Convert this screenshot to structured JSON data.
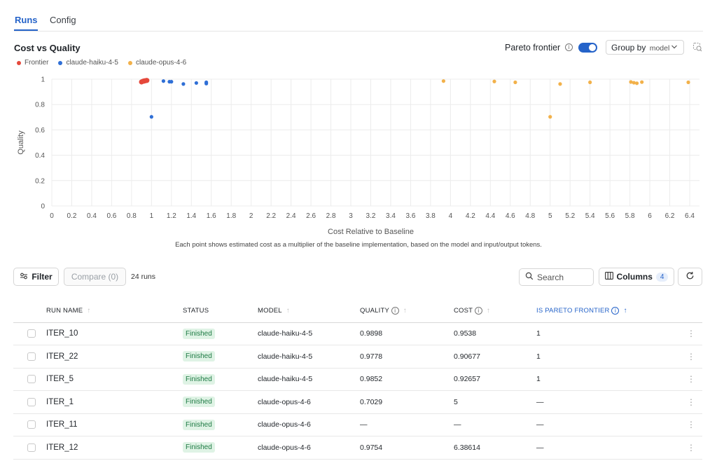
{
  "tabs": [
    {
      "label": "Runs",
      "active": true
    },
    {
      "label": "Config",
      "active": false
    }
  ],
  "chart_header": {
    "title": "Cost vs Quality",
    "pareto_label": "Pareto frontier",
    "pareto_enabled": true,
    "group_by_label": "Group by",
    "group_by_value": "model",
    "info_glyph": "i"
  },
  "chart_data": {
    "type": "scatter",
    "title": "Cost vs Quality",
    "xlabel": "Cost Relative to Baseline",
    "ylabel": "Quality",
    "xlim": [
      0,
      6.4
    ],
    "ylim": [
      0,
      1
    ],
    "x_ticks": [
      "0",
      "0.2",
      "0.4",
      "0.6",
      "0.8",
      "1",
      "1.2",
      "1.4",
      "1.6",
      "1.8",
      "2",
      "2.2",
      "2.4",
      "2.6",
      "2.8",
      "3",
      "3.2",
      "3.4",
      "3.6",
      "3.8",
      "4",
      "4.2",
      "4.4",
      "4.6",
      "4.8",
      "5",
      "5.2",
      "5.4",
      "5.6",
      "5.8",
      "6",
      "6.2",
      "6.4"
    ],
    "y_ticks": [
      "0",
      "0.2",
      "0.4",
      "0.6",
      "0.8",
      "1"
    ],
    "grid": true,
    "legend_position": "top-left",
    "series": [
      {
        "name": "Frontier",
        "color": "#e5483b",
        "points": [
          [
            0.9,
            0.978
          ],
          [
            0.91,
            0.982
          ],
          [
            0.92,
            0.985
          ],
          [
            0.927,
            0.985
          ],
          [
            0.93,
            0.987
          ],
          [
            0.94,
            0.988
          ],
          [
            0.95,
            0.99
          ],
          [
            0.954,
            0.99
          ]
        ]
      },
      {
        "name": "claude-haiku-4-5",
        "color": "#2f6fd6",
        "points": [
          [
            1.0,
            0.703
          ],
          [
            1.12,
            0.985
          ],
          [
            1.18,
            0.98
          ],
          [
            1.2,
            0.98
          ],
          [
            1.32,
            0.962
          ],
          [
            1.45,
            0.97
          ],
          [
            1.55,
            0.965
          ],
          [
            1.55,
            0.975
          ]
        ]
      },
      {
        "name": "claude-opus-4-6",
        "color": "#f2b14a",
        "points": [
          [
            3.93,
            0.985
          ],
          [
            4.44,
            0.982
          ],
          [
            4.65,
            0.975
          ],
          [
            5.0,
            0.703
          ],
          [
            5.1,
            0.962
          ],
          [
            5.4,
            0.975
          ],
          [
            5.81,
            0.978
          ],
          [
            5.84,
            0.972
          ],
          [
            5.87,
            0.968
          ],
          [
            5.92,
            0.977
          ],
          [
            6.386,
            0.975
          ]
        ]
      }
    ]
  },
  "footnote": "Each point shows estimated cost as a multiplier of the baseline implementation, based on the model and input/output tokens.",
  "toolbar": {
    "filter_label": "Filter",
    "compare_label": "Compare (0)",
    "runs_count": "24 runs",
    "search_placeholder": "Search",
    "columns_label": "Columns",
    "columns_count": "4"
  },
  "table": {
    "columns": [
      "RUN NAME",
      "STATUS",
      "MODEL",
      "QUALITY",
      "COST",
      "IS PARETO FRONTIER"
    ],
    "rows": [
      {
        "name": "ITER_10",
        "status": "Finished",
        "model": "claude-haiku-4-5",
        "quality": "0.9898",
        "cost": "0.9538",
        "frontier": "1"
      },
      {
        "name": "ITER_22",
        "status": "Finished",
        "model": "claude-haiku-4-5",
        "quality": "0.9778",
        "cost": "0.90677",
        "frontier": "1"
      },
      {
        "name": "ITER_5",
        "status": "Finished",
        "model": "claude-haiku-4-5",
        "quality": "0.9852",
        "cost": "0.92657",
        "frontier": "1"
      },
      {
        "name": "ITER_1",
        "status": "Finished",
        "model": "claude-opus-4-6",
        "quality": "0.7029",
        "cost": "5",
        "frontier": "—"
      },
      {
        "name": "ITER_11",
        "status": "Finished",
        "model": "claude-opus-4-6",
        "quality": "—",
        "cost": "—",
        "frontier": "—"
      },
      {
        "name": "ITER_12",
        "status": "Finished",
        "model": "claude-opus-4-6",
        "quality": "0.9754",
        "cost": "6.38614",
        "frontier": "—"
      }
    ]
  }
}
